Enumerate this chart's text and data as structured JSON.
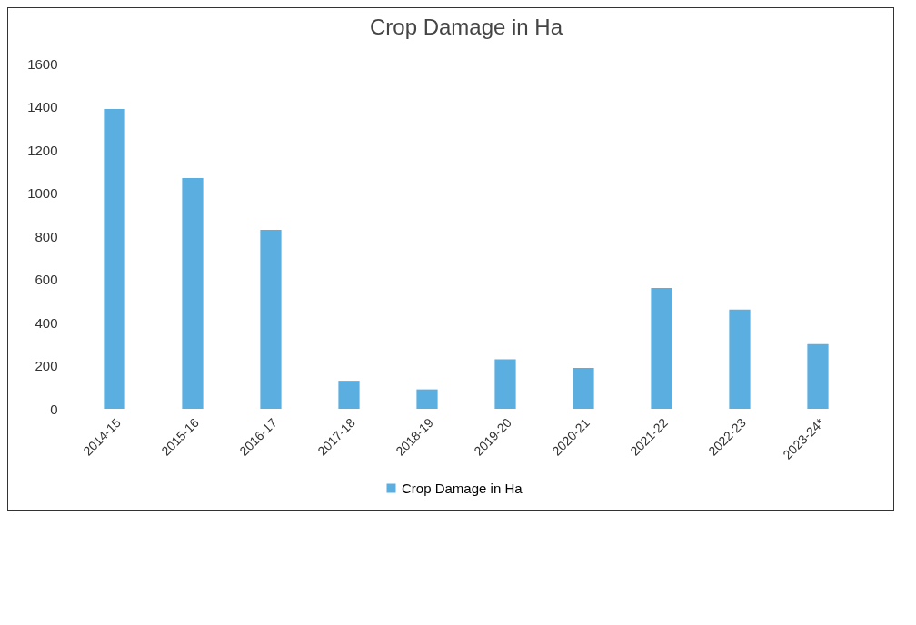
{
  "chart_data": {
    "type": "bar",
    "title": "Crop Damage in Ha",
    "categories": [
      "2014-15",
      "2015-16",
      "2016-17",
      "2017-18",
      "2018-19",
      "2019-20",
      "2020-21",
      "2021-22",
      "2022-23",
      "2023-24*"
    ],
    "series": [
      {
        "name": "Crop Damage in Ha",
        "color": "#5aaee0",
        "values": [
          1390,
          1070,
          830,
          130,
          90,
          230,
          190,
          560,
          460,
          300
        ]
      }
    ],
    "ylim": [
      0,
      1600
    ],
    "yticks": [
      0,
      200,
      400,
      600,
      800,
      1000,
      1200,
      1400,
      1600
    ],
    "grid": false,
    "legend": "bottom"
  }
}
